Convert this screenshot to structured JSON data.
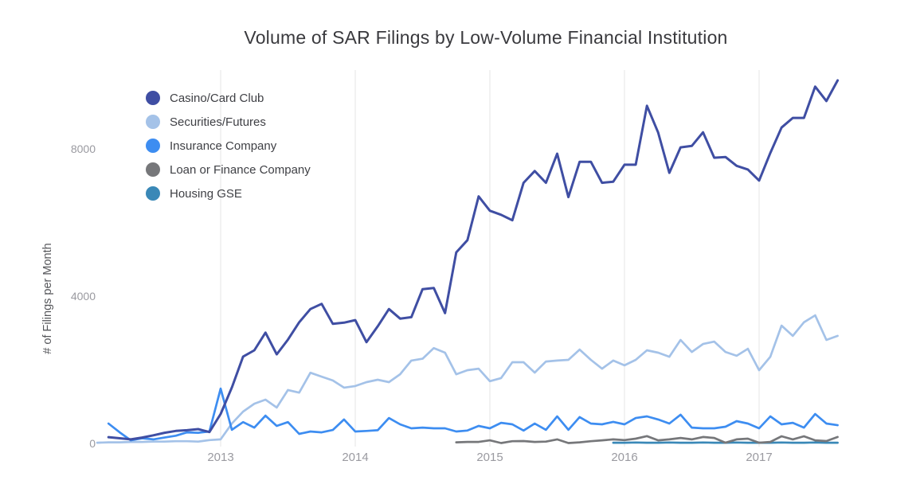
{
  "chart_data": {
    "type": "line",
    "title": "Volume of SAR Filings by Low-Volume Financial Institution",
    "ylabel": "# of Filings per Month",
    "xlabel": "",
    "x_unit": "month",
    "xticks": [
      "2013",
      "2014",
      "2015",
      "2016",
      "2017"
    ],
    "yticks": [
      {
        "label": "0",
        "value": 0
      },
      {
        "label": "4000",
        "value": 4000
      },
      {
        "label": "8000",
        "value": 8000
      }
    ],
    "ylim": [
      0,
      10200
    ],
    "grid": "vertical year gridlines only",
    "legend_position": "top-left inside plot",
    "months": [
      "2012-02",
      "2012-03",
      "2012-04",
      "2012-05",
      "2012-06",
      "2012-07",
      "2012-08",
      "2012-09",
      "2012-10",
      "2012-11",
      "2012-12",
      "2013-01",
      "2013-02",
      "2013-03",
      "2013-04",
      "2013-05",
      "2013-06",
      "2013-07",
      "2013-08",
      "2013-09",
      "2013-10",
      "2013-11",
      "2013-12",
      "2014-01",
      "2014-02",
      "2014-03",
      "2014-04",
      "2014-05",
      "2014-06",
      "2014-07",
      "2014-08",
      "2014-09",
      "2014-10",
      "2014-11",
      "2014-12",
      "2015-01",
      "2015-02",
      "2015-03",
      "2015-04",
      "2015-05",
      "2015-06",
      "2015-07",
      "2015-08",
      "2015-09",
      "2015-10",
      "2015-11",
      "2015-12",
      "2016-01",
      "2016-02",
      "2016-03",
      "2016-04",
      "2016-05",
      "2016-06",
      "2016-07",
      "2016-08",
      "2016-09",
      "2016-10",
      "2016-11",
      "2016-12",
      "2017-01",
      "2017-02",
      "2017-03",
      "2017-04",
      "2017-05",
      "2017-06",
      "2017-07",
      "2017-08"
    ],
    "series": [
      {
        "name": "Casino/Card Club",
        "color": "#3F4EA3",
        "values": [
          null,
          170,
          140,
          110,
          160,
          220,
          290,
          340,
          360,
          390,
          310,
          800,
          1520,
          2360,
          2530,
          3010,
          2420,
          2820,
          3290,
          3650,
          3790,
          3250,
          3280,
          3350,
          2750,
          3180,
          3650,
          3390,
          3430,
          4190,
          4220,
          3540,
          5190,
          5520,
          6710,
          6320,
          6210,
          6060,
          7080,
          7400,
          7080,
          7870,
          6690,
          7650,
          7650,
          7080,
          7110,
          7570,
          7570,
          9170,
          8440,
          7350,
          8040,
          8080,
          8450,
          7760,
          7780,
          7540,
          7440,
          7140,
          7890,
          8580,
          8840,
          8840,
          9690,
          9300,
          9860
        ]
      },
      {
        "name": "Securities/Futures",
        "color": "#A4C2E8",
        "values": [
          20,
          30,
          30,
          40,
          40,
          50,
          50,
          60,
          60,
          50,
          90,
          110,
          540,
          865,
          1080,
          1190,
          975,
          1450,
          1380,
          1920,
          1815,
          1710,
          1515,
          1560,
          1665,
          1730,
          1665,
          1880,
          2250,
          2300,
          2590,
          2465,
          1880,
          1990,
          2030,
          1690,
          1775,
          2205,
          2205,
          1925,
          2225,
          2250,
          2270,
          2550,
          2270,
          2030,
          2250,
          2120,
          2270,
          2530,
          2465,
          2355,
          2810,
          2485,
          2700,
          2765,
          2485,
          2380,
          2570,
          1990,
          2355,
          3200,
          2920,
          3290,
          3480,
          2810,
          2920
        ]
      },
      {
        "name": "Insurance Company",
        "color": "#3D8DF1",
        "values": [
          null,
          540,
          300,
          85,
          140,
          110,
          160,
          210,
          300,
          290,
          325,
          1490,
          370,
          580,
          430,
          755,
          475,
          580,
          260,
          325,
          300,
          365,
          650,
          325,
          340,
          360,
          690,
          520,
          410,
          430,
          410,
          410,
          325,
          350,
          475,
          410,
          560,
          520,
          350,
          540,
          370,
          735,
          370,
          715,
          540,
          520,
          585,
          520,
          690,
          735,
          650,
          540,
          780,
          430,
          410,
          410,
          455,
          605,
          540,
          410,
          735,
          520,
          560,
          430,
          800,
          540,
          495
        ]
      },
      {
        "name": "Loan or Finance Company",
        "color": "#76777A",
        "values": [
          null,
          null,
          null,
          null,
          null,
          null,
          null,
          null,
          null,
          null,
          null,
          null,
          null,
          null,
          null,
          null,
          null,
          null,
          null,
          null,
          null,
          null,
          null,
          null,
          null,
          null,
          null,
          null,
          null,
          null,
          null,
          null,
          30,
          40,
          40,
          85,
          10,
          60,
          65,
          40,
          50,
          110,
          10,
          30,
          60,
          85,
          110,
          90,
          130,
          200,
          85,
          110,
          150,
          110,
          175,
          150,
          20,
          110,
          130,
          20,
          40,
          195,
          110,
          195,
          85,
          65,
          175
        ]
      },
      {
        "name": "Housing GSE",
        "color": "#3A88B7",
        "values": [
          null,
          null,
          null,
          null,
          null,
          null,
          null,
          null,
          null,
          null,
          null,
          null,
          null,
          null,
          null,
          null,
          null,
          null,
          null,
          null,
          null,
          null,
          null,
          null,
          null,
          null,
          null,
          null,
          null,
          null,
          null,
          null,
          null,
          null,
          null,
          null,
          null,
          null,
          null,
          null,
          null,
          null,
          null,
          null,
          null,
          null,
          20,
          20,
          25,
          20,
          20,
          25,
          20,
          20,
          25,
          20,
          20,
          25,
          20,
          20,
          20,
          25,
          20,
          20,
          25,
          20,
          20
        ]
      }
    ]
  }
}
